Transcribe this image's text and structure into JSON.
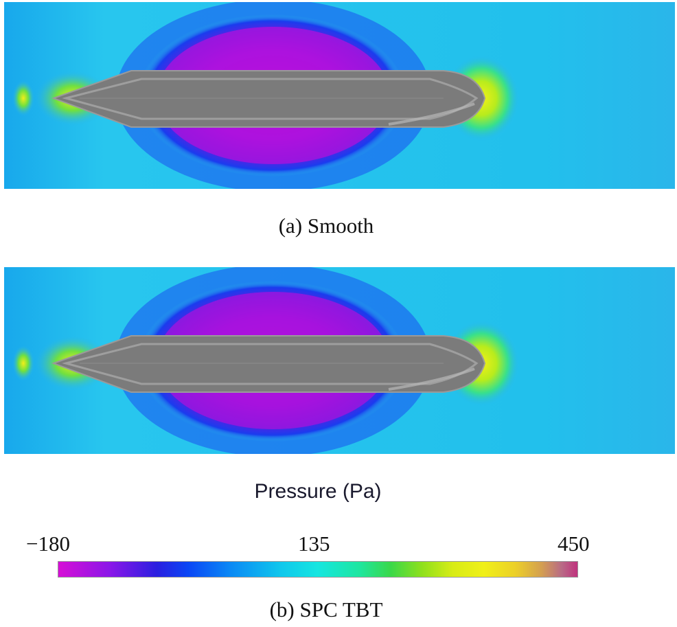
{
  "panels": [
    {
      "id": "a",
      "caption": "(a) Smooth"
    },
    {
      "id": "b",
      "caption": "(b) SPC TBT"
    }
  ],
  "colorbar": {
    "title": "Pressure (Pa)",
    "min_label": "−180",
    "mid_label": "135",
    "max_label": "450",
    "colors": {
      "low": "#d60ed6",
      "deep_blue": "#1228e6",
      "mid": "#16e6e0",
      "green": "#3ad84a",
      "yellow": "#f0f018",
      "high": "#c0327e"
    }
  },
  "colors": {
    "background_field": "#2ab4ea",
    "hull": "#7a7a7a",
    "hull_lines": "#a8a8a8"
  }
}
